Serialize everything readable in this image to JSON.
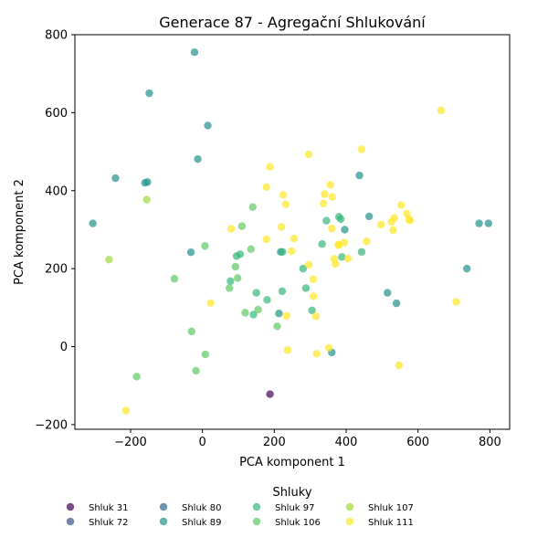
{
  "chart_data": {
    "type": "scatter",
    "title": "Generace 87 - Agregační Shlukování",
    "xlabel": "PCA komponent 1",
    "ylabel": "PCA komponent 2",
    "xlim": [
      -355,
      855
    ],
    "ylim": [
      -212,
      800
    ],
    "xticks": [
      -200,
      0,
      200,
      400,
      600,
      800
    ],
    "yticks": [
      -200,
      0,
      200,
      400,
      600,
      800
    ],
    "xtick_labels": [
      "−200",
      "0",
      "200",
      "400",
      "600",
      "800"
    ],
    "ytick_labels": [
      "−200",
      "0",
      "200",
      "400",
      "600",
      "800"
    ],
    "grid": false,
    "legend": {
      "title": "Shluky",
      "placement": "bottom",
      "columns": 5
    },
    "series": [
      {
        "name": "Shluk 31",
        "color": "#440154",
        "points": [
          [
            188,
            -122
          ]
        ]
      },
      {
        "name": "Shluk 72",
        "color": "#3b528b",
        "points": []
      },
      {
        "name": "Shluk 80",
        "color": "#31688e",
        "points": []
      },
      {
        "name": "Shluk 89",
        "color": "#21918c",
        "points": [
          [
            -22,
            755
          ],
          [
            -148,
            650
          ],
          [
            15,
            567
          ],
          [
            -13,
            481
          ],
          [
            -242,
            432
          ],
          [
            -160,
            420
          ],
          [
            -153,
            422
          ],
          [
            -305,
            316
          ],
          [
            -32,
            242
          ],
          [
            437,
            439
          ],
          [
            464,
            334
          ],
          [
            396,
            300
          ],
          [
            770,
            316
          ],
          [
            796,
            316
          ],
          [
            736,
            200
          ],
          [
            515,
            138
          ],
          [
            540,
            111
          ],
          [
            213,
            85
          ],
          [
            360,
            -15
          ],
          [
            218,
            243
          ]
        ]
      },
      {
        "name": "Shluk 97",
        "color": "#35b779",
        "points": [
          [
            345,
            323
          ],
          [
            380,
            333
          ],
          [
            385,
            327
          ],
          [
            443,
            243
          ],
          [
            333,
            263
          ],
          [
            280,
            200
          ],
          [
            288,
            150
          ],
          [
            305,
            93
          ],
          [
            223,
            243
          ],
          [
            222,
            142
          ],
          [
            150,
            138
          ],
          [
            180,
            120
          ],
          [
            105,
            237
          ],
          [
            95,
            232
          ],
          [
            78,
            168
          ],
          [
            388,
            230
          ],
          [
            142,
            82
          ]
        ]
      },
      {
        "name": "Shluk 106",
        "color": "#5ec962",
        "points": [
          [
            110,
            309
          ],
          [
            140,
            358
          ],
          [
            135,
            250
          ],
          [
            7,
            258
          ],
          [
            -78,
            174
          ],
          [
            98,
            176
          ],
          [
            92,
            205
          ],
          [
            75,
            150
          ],
          [
            119,
            87
          ],
          [
            155,
            95
          ],
          [
            208,
            52
          ],
          [
            8,
            -20
          ],
          [
            -30,
            39
          ],
          [
            -18,
            -62
          ],
          [
            -183,
            -77
          ]
        ]
      },
      {
        "name": "Shluk 107",
        "color": "#a0da39",
        "points": [
          [
            -260,
            223
          ],
          [
            -155,
            377
          ]
        ]
      },
      {
        "name": "Shluk 111",
        "color": "#fde725",
        "points": [
          [
            664,
            606
          ],
          [
            443,
            506
          ],
          [
            296,
            493
          ],
          [
            188,
            461
          ],
          [
            178,
            409
          ],
          [
            225,
            389
          ],
          [
            232,
            365
          ],
          [
            340,
            391
          ],
          [
            337,
            367
          ],
          [
            356,
            415
          ],
          [
            361,
            384
          ],
          [
            553,
            363
          ],
          [
            569,
            341
          ],
          [
            575,
            326
          ],
          [
            578,
            324
          ],
          [
            534,
            330
          ],
          [
            526,
            320
          ],
          [
            531,
            299
          ],
          [
            497,
            313
          ],
          [
            80,
            302
          ],
          [
            220,
            307
          ],
          [
            360,
            303
          ],
          [
            457,
            270
          ],
          [
            395,
            267
          ],
          [
            380,
            260
          ],
          [
            378,
            262
          ],
          [
            370,
            212
          ],
          [
            367,
            225
          ],
          [
            405,
            226
          ],
          [
            255,
            277
          ],
          [
            248,
            245
          ],
          [
            178,
            275
          ],
          [
            296,
            210
          ],
          [
            308,
            173
          ],
          [
            309,
            129
          ],
          [
            316,
            78
          ],
          [
            234,
            79
          ],
          [
            23,
            112
          ],
          [
            706,
            115
          ],
          [
            237,
            -9
          ],
          [
            318,
            -18
          ],
          [
            352,
            -3
          ],
          [
            547,
            -48
          ],
          [
            -213,
            -164
          ]
        ]
      }
    ]
  }
}
